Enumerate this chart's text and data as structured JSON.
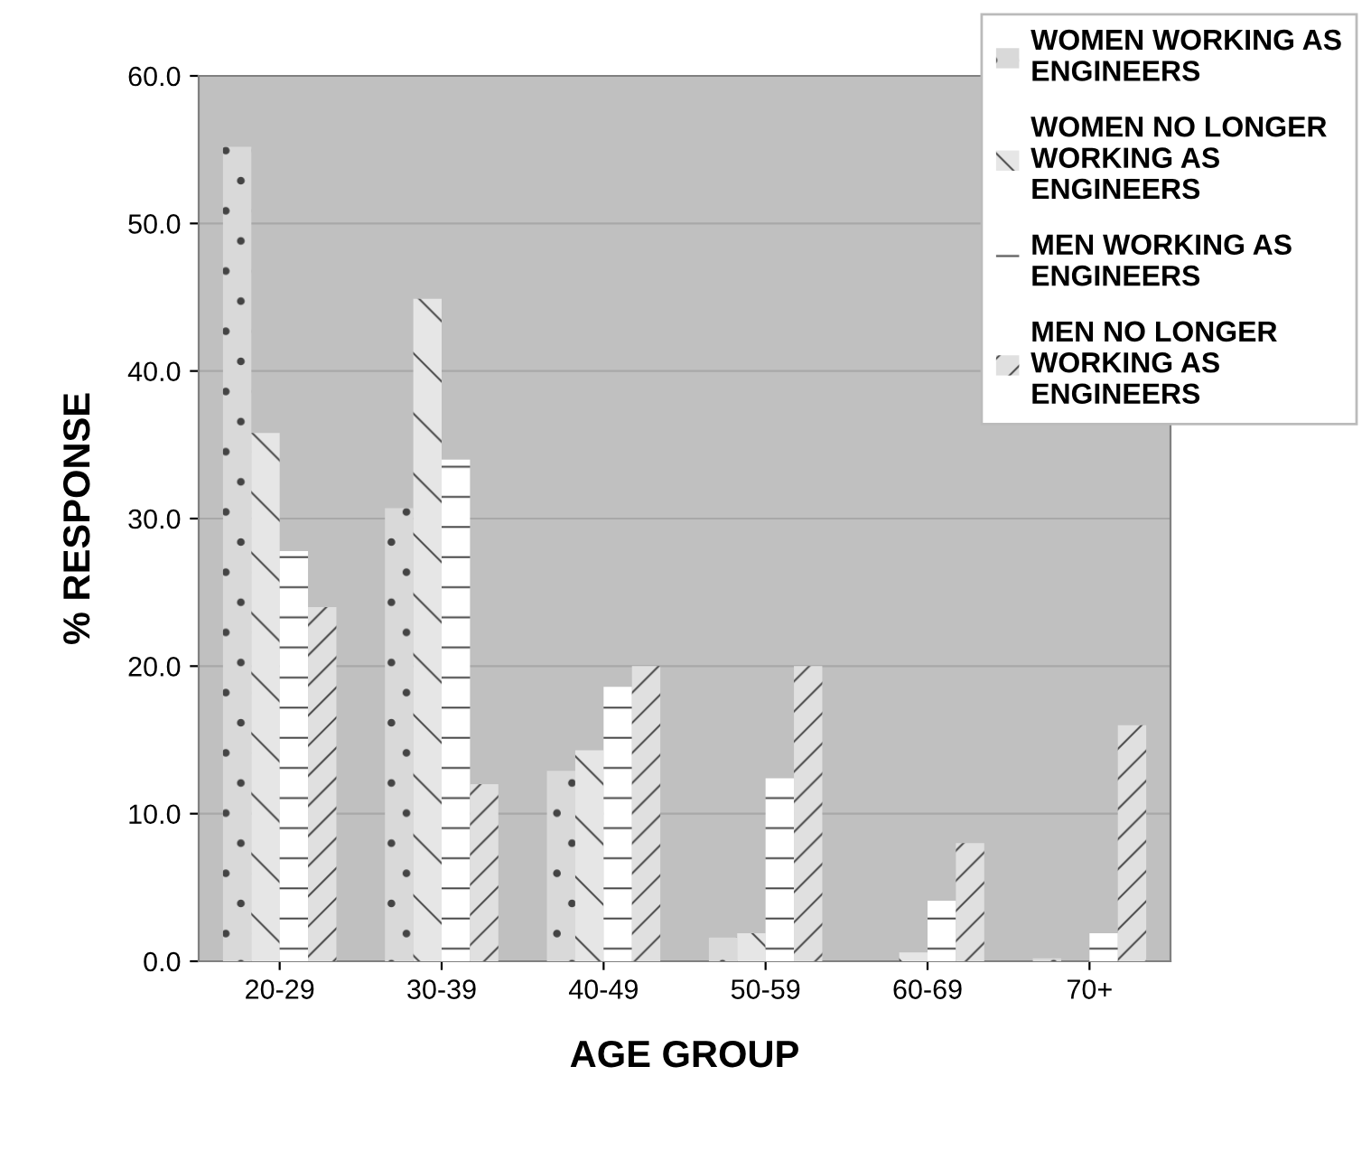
{
  "chart_data": {
    "type": "bar",
    "xlabel": "AGE GROUP",
    "ylabel": "% RESPONSE",
    "categories": [
      "20-29",
      "30-39",
      "40-49",
      "50-59",
      "60-69",
      "70+"
    ],
    "series": [
      {
        "name": "WOMEN WORKING AS\nENGINEERS",
        "color": "#d9d9d9",
        "values": [
          55.2,
          30.7,
          12.9,
          1.6,
          0.0,
          0.2
        ]
      },
      {
        "name": "WOMEN NO LONGER\nWORKING AS\nENGINEERS",
        "color": "#e6e6e6",
        "values": [
          35.8,
          44.9,
          14.3,
          1.9,
          0.6,
          0.0
        ]
      },
      {
        "name": "MEN WORKING AS\nENGINEERS",
        "color": "#ffffff",
        "values": [
          27.8,
          34.0,
          18.6,
          12.4,
          4.1,
          1.9
        ]
      },
      {
        "name": "MEN NO LONGER\nWORKING AS\nENGINEERS",
        "color": "#e0e0e0",
        "values": [
          24.0,
          12.0,
          20.0,
          20.0,
          8.0,
          16.0
        ]
      }
    ],
    "ylim": [
      0,
      60
    ],
    "yticks": [
      {
        "value": 0,
        "label": "0.0"
      },
      {
        "value": 10,
        "label": "10.0"
      },
      {
        "value": 20,
        "label": "20.0"
      },
      {
        "value": 30,
        "label": "30.0"
      },
      {
        "value": 40,
        "label": "40.0"
      },
      {
        "value": 50,
        "label": "50.0"
      },
      {
        "value": 60,
        "label": "60.0"
      }
    ],
    "grid": "y",
    "legend": "top right"
  }
}
